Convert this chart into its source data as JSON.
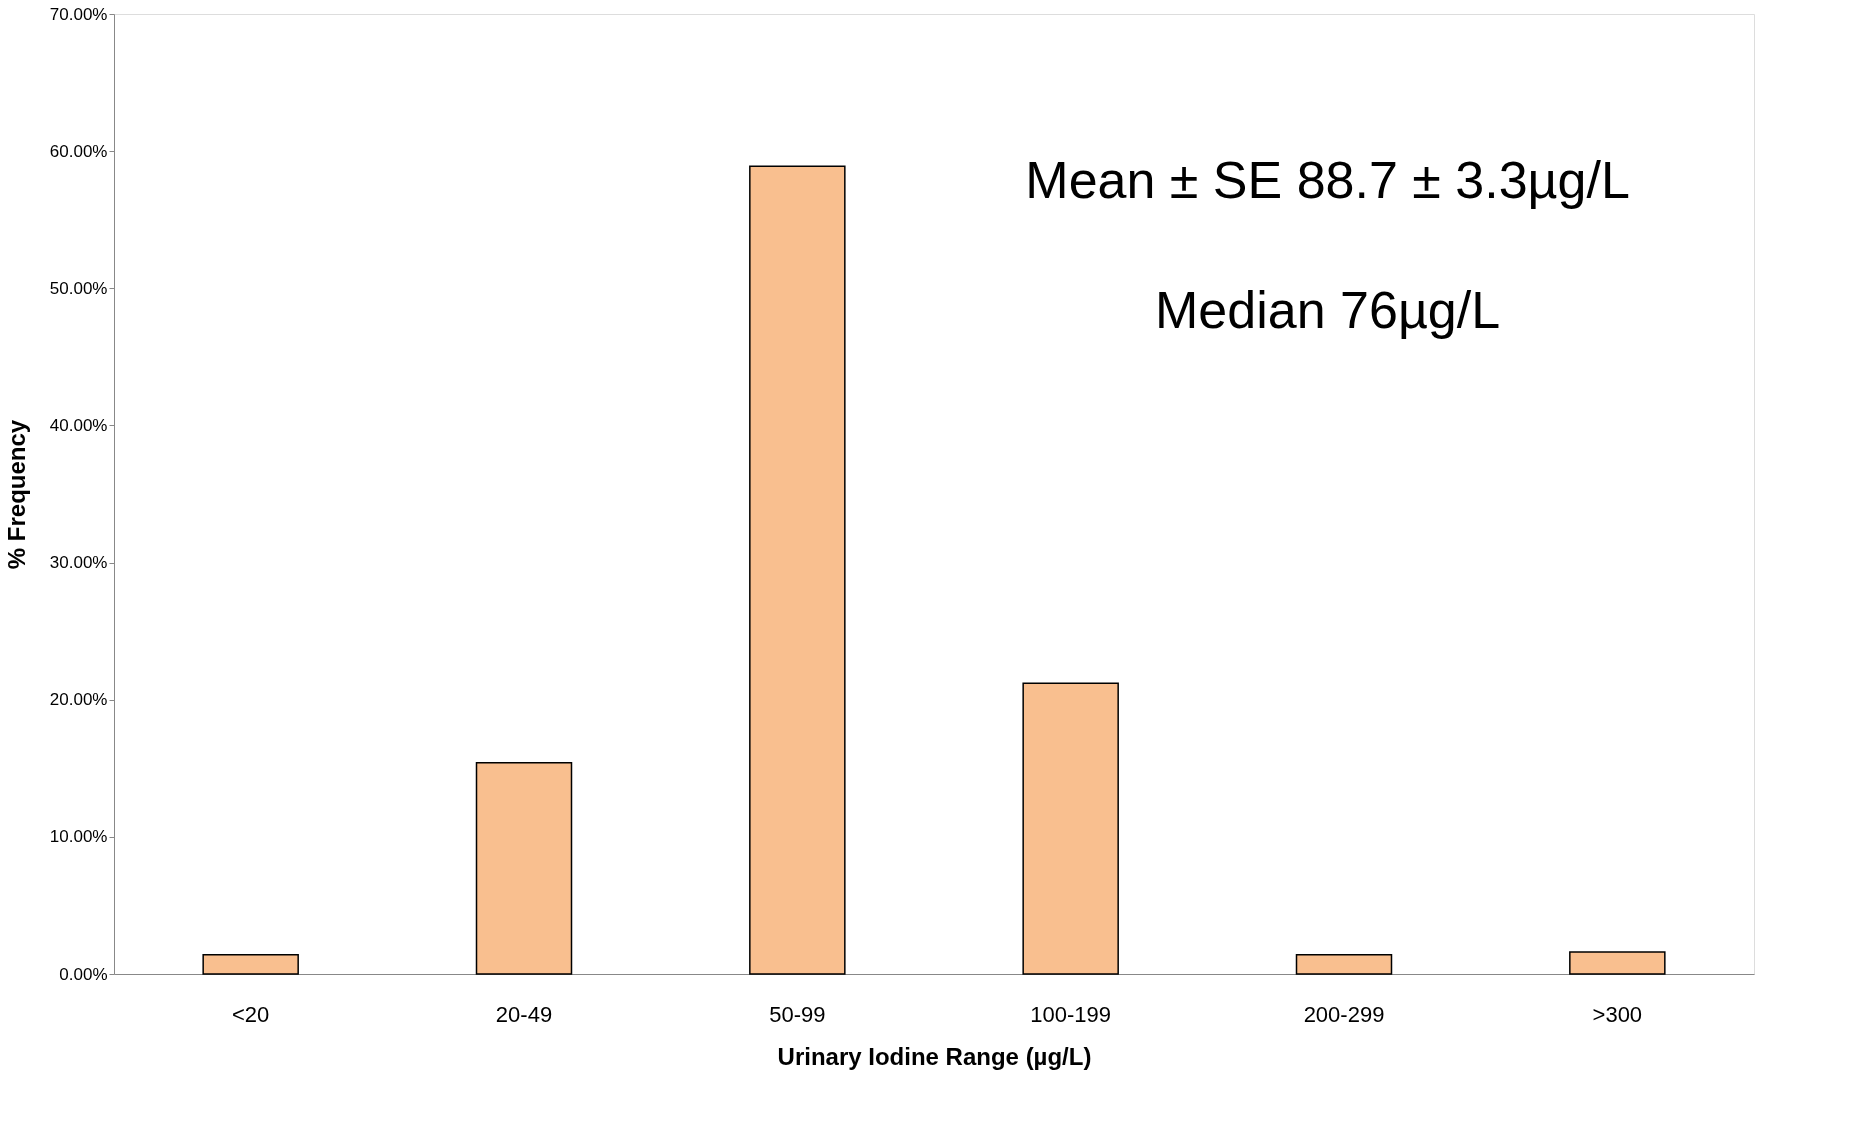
{
  "chart_data": {
    "type": "bar",
    "xlabel": "Urinary Iodine Range  (µg/L)",
    "ylabel": "% Frequency",
    "categories": [
      "<20",
      "20-49",
      "50-99",
      "100-199",
      "200-299",
      ">300"
    ],
    "values": [
      1.4,
      15.4,
      58.9,
      21.2,
      1.4,
      1.6
    ],
    "color": "#f9bf8f",
    "ylim": [
      0,
      70
    ],
    "yticks": [
      {
        "value": 0,
        "label": "0.00%"
      },
      {
        "value": 10,
        "label": "10.00%"
      },
      {
        "value": 20,
        "label": "20.00%"
      },
      {
        "value": 30,
        "label": "30.00%"
      },
      {
        "value": 40,
        "label": "40.00%"
      },
      {
        "value": 50,
        "label": "50.00%"
      },
      {
        "value": 60,
        "label": "60.00%"
      },
      {
        "value": 70,
        "label": "70.00%"
      }
    ],
    "grid": false,
    "annotations": [
      "Mean ± SE 88.7 ± 3.3µg/L",
      "Median 76µg/L"
    ]
  }
}
